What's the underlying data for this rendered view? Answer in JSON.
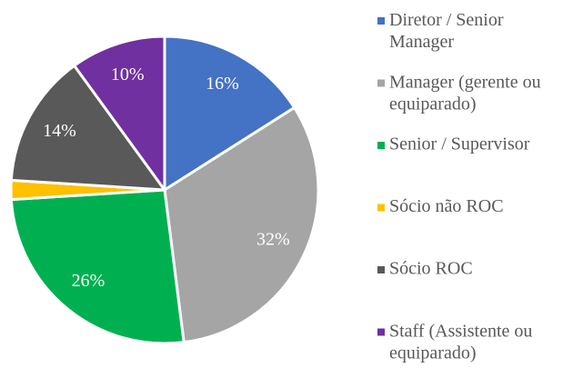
{
  "chart_data": {
    "type": "pie",
    "categories": [
      "Diretor / Senior Manager",
      "Manager (gerente ou equiparado)",
      "Senior / Supervisor",
      "Sócio não ROC",
      "Sócio ROC",
      "Staff (Assistente ou equiparado)"
    ],
    "values": [
      16,
      32,
      26,
      2,
      14,
      10
    ],
    "value_labels": [
      "16%",
      "32%",
      "26%",
      null,
      "14%",
      "10%"
    ],
    "colors": [
      "#4472c4",
      "#a5a5a5",
      "#00b050",
      "#ffc000",
      "#595959",
      "#7030a0"
    ],
    "legend": "right"
  }
}
